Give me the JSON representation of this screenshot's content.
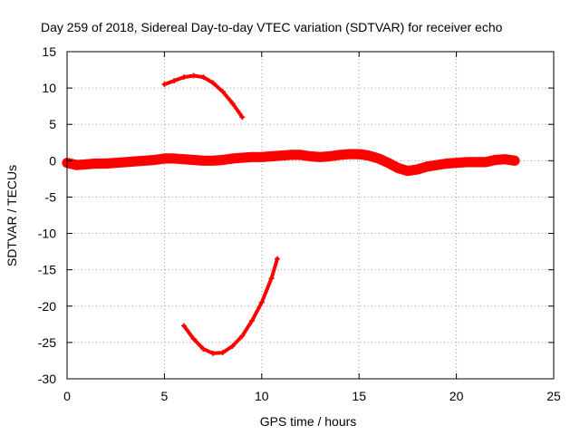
{
  "chart_data": {
    "type": "line",
    "title": "Day 259 of 2018, Sidereal Day-to-day VTEC variation (SDTVAR) for receiver echo",
    "xlabel": "GPS time / hours",
    "ylabel": "SDTVAR / TECUs",
    "xlim": [
      0,
      25
    ],
    "ylim": [
      -30,
      15
    ],
    "xticks": [
      0,
      5,
      10,
      15,
      20,
      25
    ],
    "yticks": [
      -30,
      -25,
      -20,
      -15,
      -10,
      -5,
      0,
      5,
      10,
      15
    ],
    "grid": true,
    "color": "#ff0000",
    "series": [
      {
        "name": "main-band",
        "x": [
          0.0,
          0.5,
          1.0,
          1.5,
          2.0,
          2.5,
          3.0,
          3.5,
          4.0,
          4.5,
          5.0,
          5.5,
          6.0,
          6.5,
          7.0,
          7.5,
          8.0,
          8.5,
          9.0,
          9.5,
          10.0,
          10.5,
          11.0,
          11.5,
          12.0,
          12.5,
          13.0,
          13.5,
          14.0,
          14.5,
          15.0,
          15.5,
          16.0,
          16.5,
          17.0,
          17.5,
          18.0,
          18.5,
          19.0,
          19.5,
          20.0,
          20.5,
          21.0,
          21.5,
          22.0,
          22.5,
          23.0
        ],
        "values": [
          -0.3,
          -0.6,
          -0.5,
          -0.4,
          -0.4,
          -0.3,
          -0.2,
          -0.1,
          0.0,
          0.1,
          0.3,
          0.3,
          0.2,
          0.1,
          0.0,
          0.0,
          0.1,
          0.3,
          0.4,
          0.5,
          0.5,
          0.6,
          0.7,
          0.8,
          0.8,
          0.6,
          0.5,
          0.6,
          0.8,
          0.9,
          0.9,
          0.7,
          0.3,
          -0.3,
          -1.0,
          -1.4,
          -1.2,
          -0.8,
          -0.6,
          -0.4,
          -0.3,
          -0.2,
          -0.2,
          -0.2,
          0.1,
          0.2,
          0.0
        ],
        "band": 1.4
      },
      {
        "name": "upper-arc",
        "x": [
          5.0,
          5.5,
          6.0,
          6.5,
          7.0,
          7.5,
          8.0,
          8.5,
          9.0
        ],
        "values": [
          10.5,
          11.0,
          11.5,
          11.7,
          11.5,
          10.7,
          9.5,
          7.9,
          6.0
        ],
        "band": 0.5
      },
      {
        "name": "lower-arc",
        "x": [
          6.0,
          6.5,
          7.0,
          7.5,
          8.0,
          8.5,
          9.0,
          9.5,
          10.0,
          10.5,
          10.8
        ],
        "values": [
          -22.7,
          -24.5,
          -25.9,
          -26.5,
          -26.4,
          -25.5,
          -24.1,
          -22.0,
          -19.5,
          -16.2,
          -13.5
        ],
        "band": 0.5
      }
    ]
  }
}
